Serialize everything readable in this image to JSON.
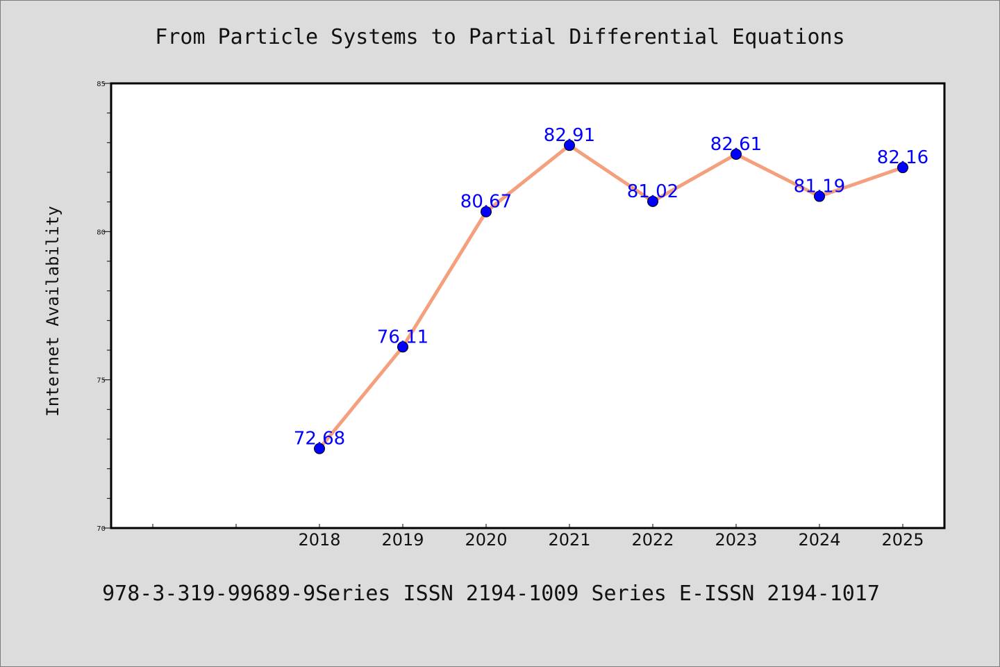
{
  "chart_data": {
    "type": "line",
    "title": "From Particle Systems to Partial Differential Equations",
    "xlabel": "",
    "ylabel": "Internet Availability",
    "categories": [
      "2018",
      "2019",
      "2020",
      "2021",
      "2022",
      "2023",
      "2024",
      "2025"
    ],
    "series": [
      {
        "values": [
          72.68,
          76.11,
          80.67,
          82.91,
          81.02,
          82.61,
          81.19,
          82.16
        ]
      }
    ],
    "data_labels": [
      "72.68",
      "76.11",
      "80.67",
      "82.91",
      "81.02",
      "82.61",
      "81.19",
      "82.16"
    ],
    "ylim": [
      70,
      85
    ],
    "yticks": [
      "70",
      "75",
      "80",
      "85"
    ],
    "grid": false,
    "legend": "none",
    "line_color": "#f4a07e",
    "marker_color": "#0000ff",
    "label_color": "#0000ff"
  },
  "footer": {
    "text": "978-3-319-99689-9Series ISSN 2194-1009 Series E-ISSN 2194-1017"
  }
}
